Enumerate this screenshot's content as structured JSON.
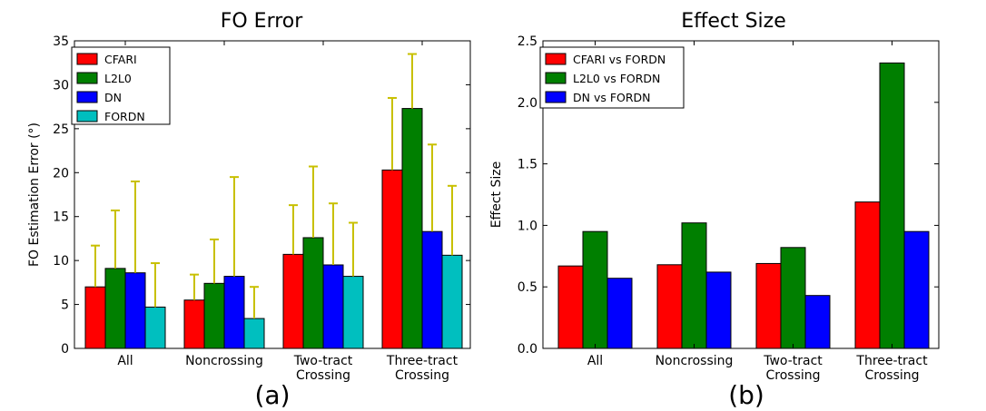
{
  "chart_data": [
    {
      "type": "bar",
      "title": "FO Error",
      "ylabel": "FO Estimation Error (°)",
      "xlabel": "",
      "panel_label": "(a)",
      "categories": [
        [
          "All"
        ],
        [
          "Noncrossing"
        ],
        [
          "Two-tract",
          "Crossing"
        ],
        [
          "Three-tract",
          "Crossing"
        ]
      ],
      "ylim": [
        0,
        35
      ],
      "yticks": [
        0,
        5,
        10,
        15,
        20,
        25,
        30,
        35
      ],
      "legend_position": "top-left",
      "error_bar_color": "#c8c000",
      "series": [
        {
          "name": "CFARI",
          "color": "#ff0000",
          "values": [
            7.0,
            5.5,
            10.7,
            20.3
          ],
          "errors": [
            4.7,
            2.9,
            5.6,
            8.2
          ]
        },
        {
          "name": "L2L0",
          "color": "#007f00",
          "values": [
            9.1,
            7.4,
            12.6,
            27.3
          ],
          "errors": [
            6.6,
            5.0,
            8.1,
            6.2
          ]
        },
        {
          "name": "DN",
          "color": "#0000ff",
          "values": [
            8.6,
            8.2,
            9.5,
            13.3
          ],
          "errors": [
            10.4,
            11.3,
            7.0,
            9.9
          ]
        },
        {
          "name": "FORDN",
          "color": "#00bfbf",
          "values": [
            4.7,
            3.4,
            8.2,
            10.6
          ],
          "errors": [
            5.0,
            3.6,
            6.1,
            7.9
          ]
        }
      ]
    },
    {
      "type": "bar",
      "title": "Effect Size",
      "ylabel": "Effect Size",
      "xlabel": "",
      "panel_label": "(b)",
      "categories": [
        [
          "All"
        ],
        [
          "Noncrossing"
        ],
        [
          "Two-tract",
          "Crossing"
        ],
        [
          "Three-tract",
          "Crossing"
        ]
      ],
      "ylim": [
        0,
        2.5
      ],
      "yticks": [
        "0.0",
        "0.5",
        "1.0",
        "1.5",
        "2.0",
        "2.5"
      ],
      "legend_position": "top-left",
      "series": [
        {
          "name": "CFARI vs FORDN",
          "color": "#ff0000",
          "values": [
            0.67,
            0.68,
            0.69,
            1.19
          ]
        },
        {
          "name": "L2L0 vs FORDN",
          "color": "#007f00",
          "values": [
            0.95,
            1.02,
            0.82,
            2.32
          ]
        },
        {
          "name": "DN vs FORDN",
          "color": "#0000ff",
          "values": [
            0.57,
            0.62,
            0.43,
            0.95
          ]
        }
      ]
    }
  ]
}
